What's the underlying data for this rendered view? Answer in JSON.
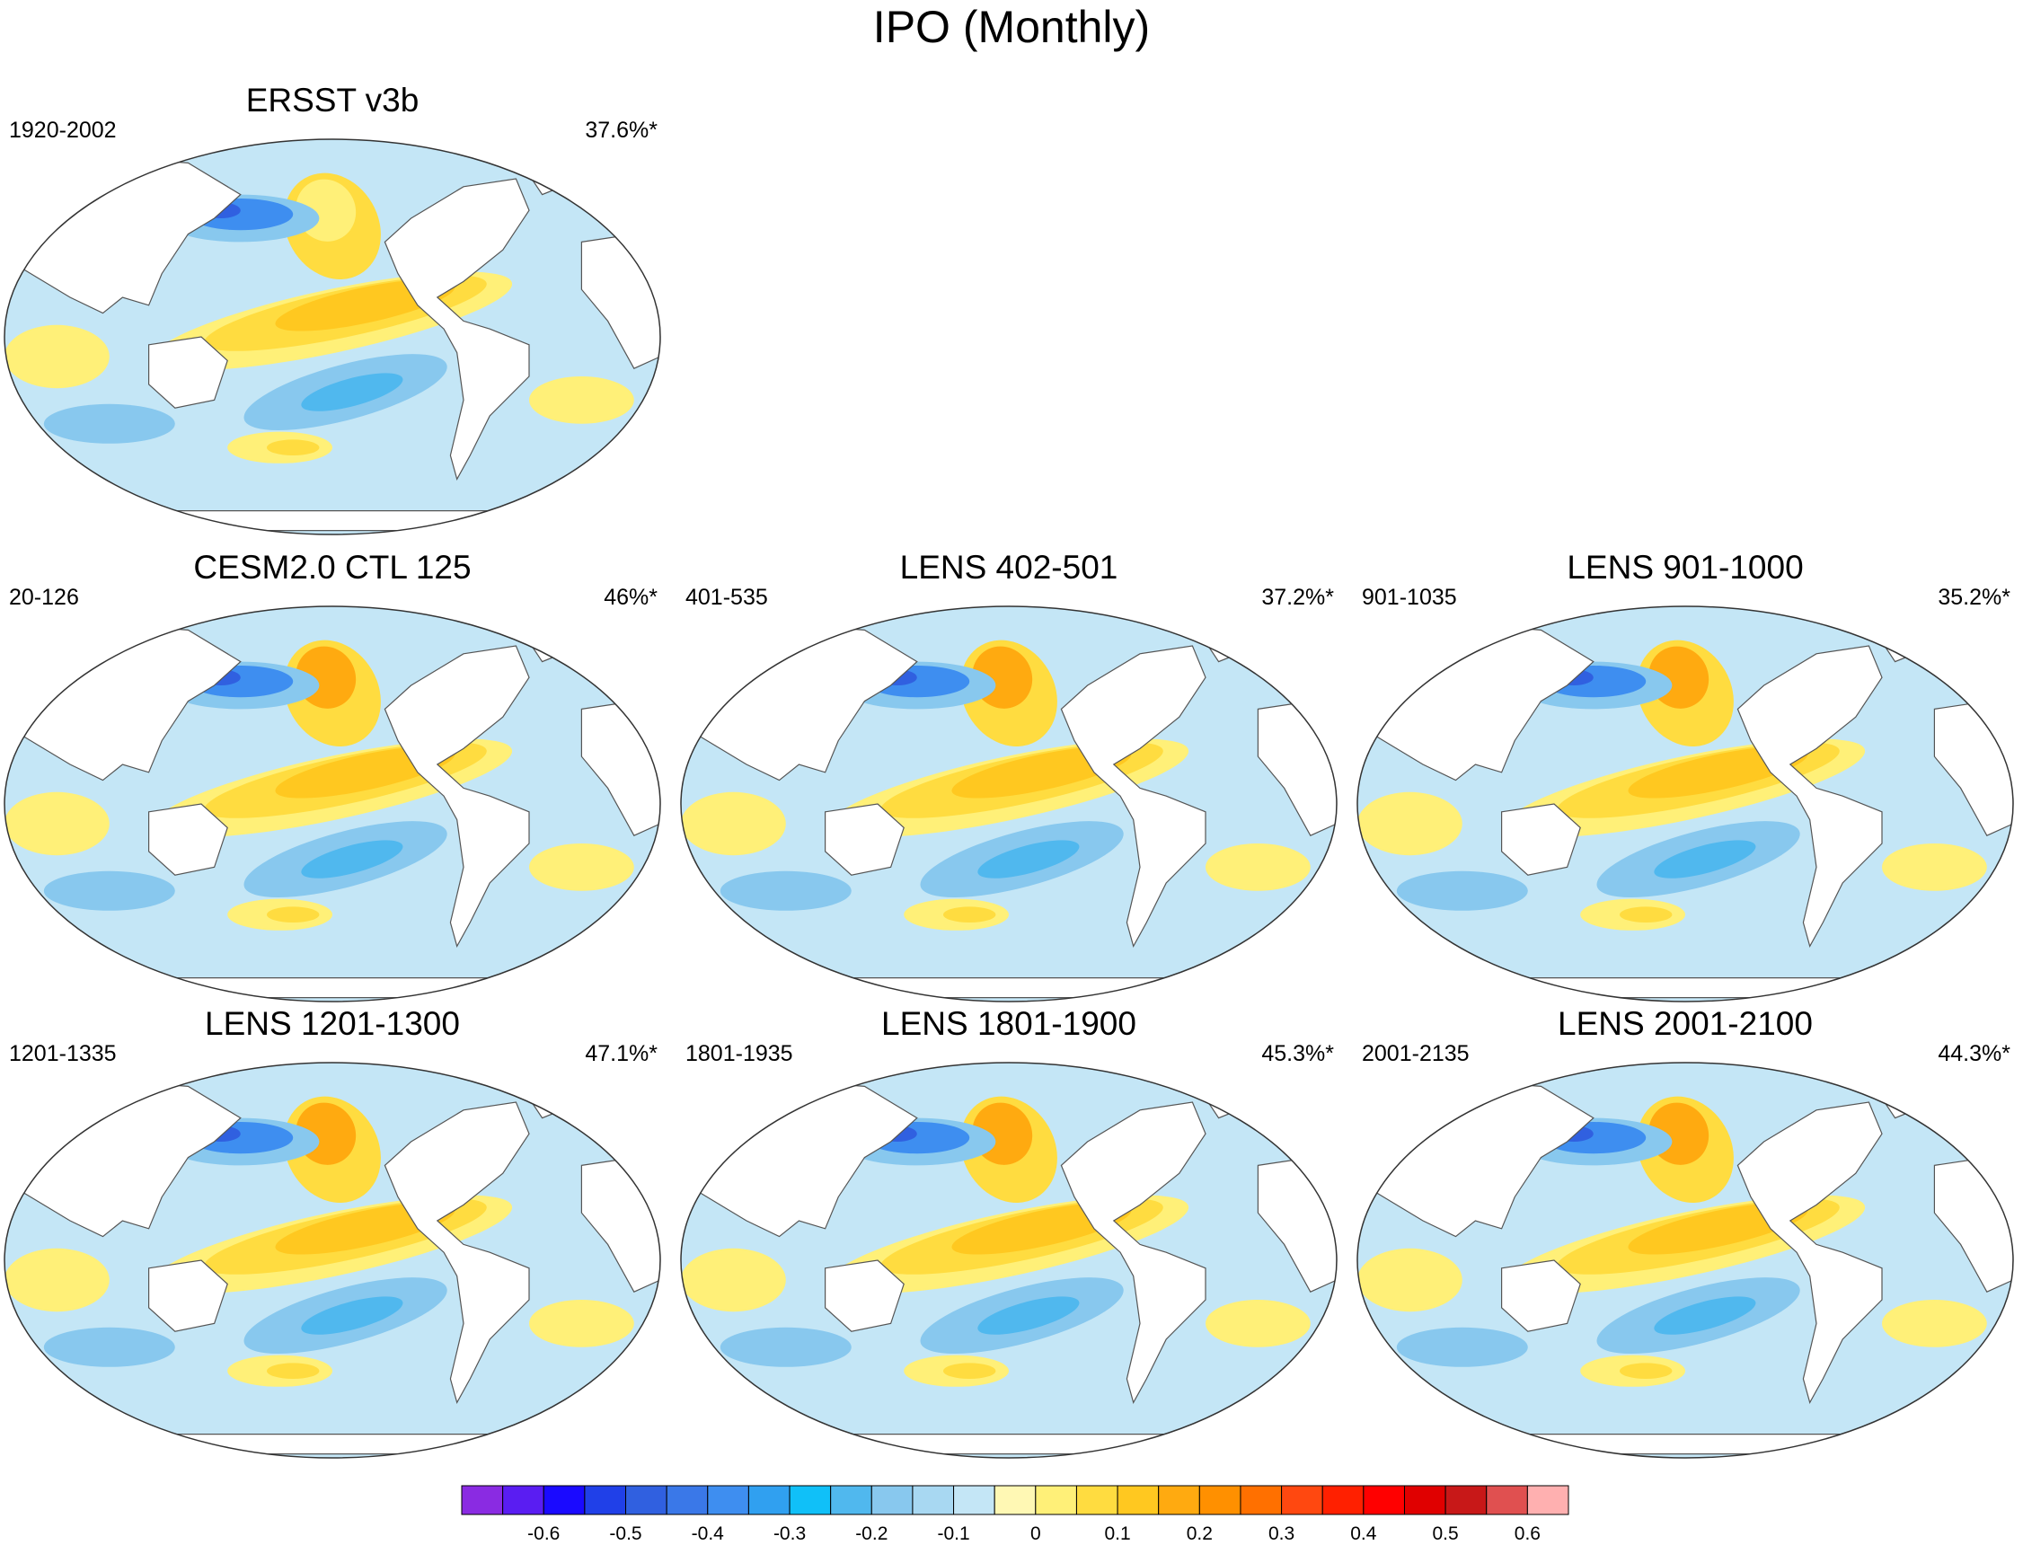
{
  "title": "IPO (Monthly)",
  "panels": [
    {
      "title": "ERSST v3b",
      "period": "1920-2002",
      "variance": "37.6%*"
    },
    {
      "title": "CESM2.0 CTL 125",
      "period": "20-126",
      "variance": "46%*"
    },
    {
      "title": "LENS 402-501",
      "period": "401-535",
      "variance": "37.2%*"
    },
    {
      "title": "LENS 901-1000",
      "period": "901-1035",
      "variance": "35.2%*"
    },
    {
      "title": "LENS 1201-1300",
      "period": "1201-1335",
      "variance": "47.1%*"
    },
    {
      "title": "LENS 1801-1900",
      "period": "1801-1935",
      "variance": "45.3%*"
    },
    {
      "title": "LENS 2001-2100",
      "period": "2001-2135",
      "variance": "44.3%*"
    }
  ],
  "colorbar": {
    "colors": [
      "#8a2be2",
      "#5a1df2",
      "#1a0aff",
      "#2040e8",
      "#3060e0",
      "#3a78e8",
      "#3e8ef0",
      "#30a0f0",
      "#10c0f8",
      "#50b8ee",
      "#88c8ee",
      "#a8d8f2",
      "#c4e6f6",
      "#fff8b4",
      "#fff078",
      "#ffdc40",
      "#ffc820",
      "#ffaa10",
      "#ff9000",
      "#ff7000",
      "#ff4810",
      "#ff2000",
      "#ff0000",
      "#e00000",
      "#c81818",
      "#e05050",
      "#ffb0b0"
    ],
    "labels": [
      "-0.6",
      "-0.5",
      "-0.4",
      "-0.3",
      "-0.2",
      "-0.1",
      "0",
      "0.1",
      "0.2",
      "0.3",
      "0.4",
      "0.5",
      "0.6"
    ]
  }
}
